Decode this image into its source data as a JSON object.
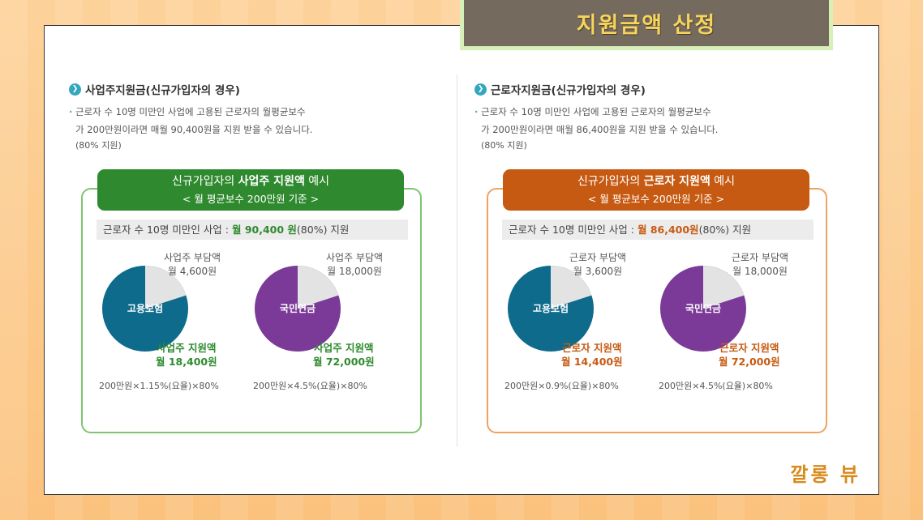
{
  "title": "지원금액 산정",
  "watermark": "깔롱 뷰",
  "columns": [
    {
      "heading": "사업주지원금(신규가입자의 경우)",
      "desc_line1": "근로자 수 10명 미만인 사업에 고용된 근로자의 월평균보수",
      "desc_line2": "가 200만원이라면 매월 90,400원을 지원 받을 수 있습니다.",
      "desc_pct": "(80% 지원)",
      "box_title_pre": "신규가입자의 ",
      "box_title_bold": "사업주 지원액",
      "box_title_post": " 예시",
      "box_subtitle": "< 월 평균보수 200만원 기준 >",
      "summary_pre": "근로자 수 10명 미만인 사업 : ",
      "summary_hl": "월 90,400 원",
      "summary_post": "(80%) 지원",
      "pies": [
        {
          "label": "고용보험",
          "color": "#0e6b8c",
          "support_fraction": 0.8,
          "burden_label": "사업주 부담액",
          "burden_amount": "월 4,600원",
          "support_label": "사업주 지원액",
          "support_amount": "월 18,400원",
          "formula": "200만원×1.15%(요율)×80%"
        },
        {
          "label": "국민연금",
          "color": "#7b3a98",
          "support_fraction": 0.8,
          "burden_label": "사업주 부담액",
          "burden_amount": "월 18,000원",
          "support_label": "사업주 지원액",
          "support_amount": "월 72,000원",
          "formula": "200만원×4.5%(요율)×80%"
        }
      ]
    },
    {
      "heading": "근로자지원금(신규가입자의 경우)",
      "desc_line1": "근로자 수 10명 미만인 사업에 고용된 근로자의 월평균보수",
      "desc_line2": "가 200만원이라면 매월 86,400원을 지원 받을 수 있습니다.",
      "desc_pct": "(80% 지원)",
      "box_title_pre": "신규가입자의 ",
      "box_title_bold": "근로자 지원액",
      "box_title_post": " 예시",
      "box_subtitle": "< 월 평균보수 200만원 기준 >",
      "summary_pre": "근로자 수 10명 미만인 사업 : ",
      "summary_hl": "월 86,400원",
      "summary_post": "(80%) 지원",
      "pies": [
        {
          "label": "고용보험",
          "color": "#0e6b8c",
          "support_fraction": 0.8,
          "burden_label": "근로자 부담액",
          "burden_amount": "월 3,600원",
          "support_label": "근로자 지원액",
          "support_amount": "월 14,400원",
          "formula": "200만원×0.9%(요율)×80%"
        },
        {
          "label": "국민연금",
          "color": "#7b3a98",
          "support_fraction": 0.8,
          "burden_label": "근로자 부담액",
          "burden_amount": "월 18,000원",
          "support_label": "근로자 지원액",
          "support_amount": "월 72,000원",
          "formula": "200만원×4.5%(요율)×80%"
        }
      ]
    }
  ]
}
